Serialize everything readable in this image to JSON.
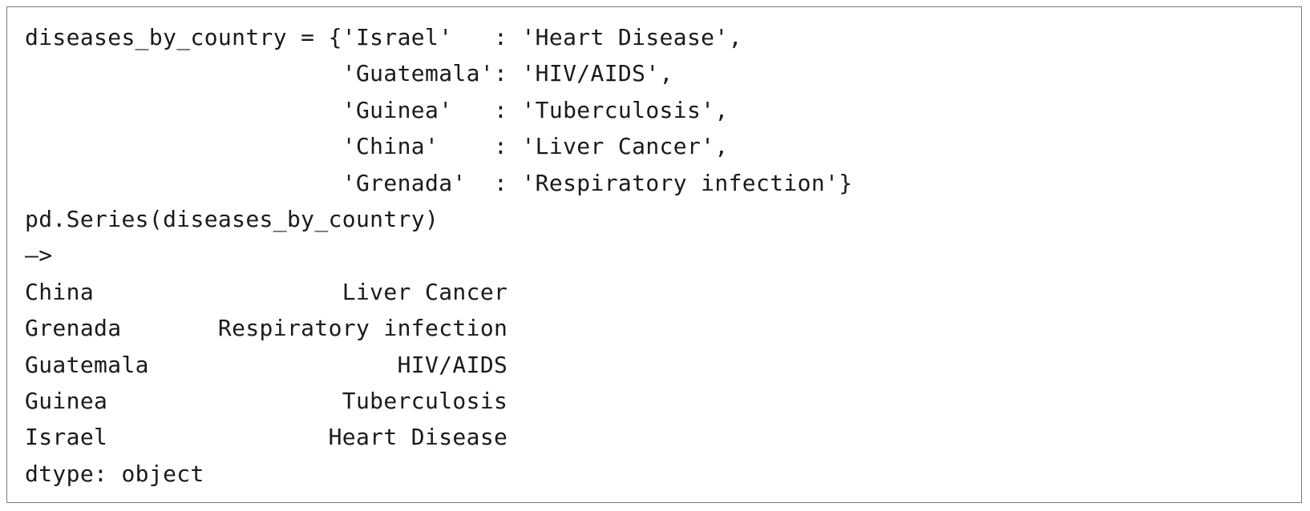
{
  "code_block": {
    "lines": [
      "diseases_by_country = {'Israel'   : 'Heart Disease',",
      "                       'Guatemala': 'HIV/AIDS',",
      "                       'Guinea'   : 'Tuberculosis',",
      "                       'China'    : 'Liver Cancer',",
      "                       'Grenada'  : 'Respiratory infection'}",
      "pd.Series(diseases_by_country)",
      "—>",
      "China                  Liver Cancer",
      "Grenada       Respiratory infection",
      "Guatemala                  HIV/AIDS",
      "Guinea                 Tuberculosis",
      "Israel                Heart Disease",
      "dtype: object"
    ]
  }
}
